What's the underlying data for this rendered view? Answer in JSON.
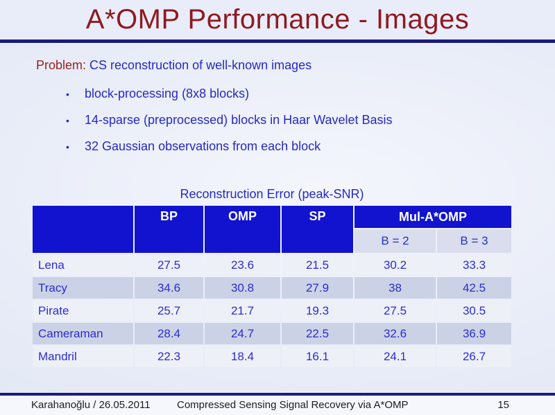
{
  "slide": {
    "title": "A*OMP Performance - Images",
    "problem": {
      "label": "Problem:",
      "text": "CS reconstruction of well-known images"
    },
    "bullet_char": "•",
    "bullets": [
      "block-processing (8x8 blocks)",
      "14-sparse (preprocessed) blocks in Haar Wavelet Basis",
      "32 Gaussian observations from each block"
    ]
  },
  "table": {
    "title": "Reconstruction Error (peak-SNR)",
    "column_headers": [
      "BP",
      "OMP",
      "SP"
    ],
    "group_header": "Mul-A*OMP",
    "sub_headers": [
      "B = 2",
      "B = 3"
    ],
    "rows": [
      {
        "name": "Lena",
        "values": [
          "27.5",
          "23.6",
          "21.5",
          "30.2",
          "33.3"
        ]
      },
      {
        "name": "Tracy",
        "values": [
          "34.6",
          "30.8",
          "27.9",
          "38",
          "42.5"
        ]
      },
      {
        "name": "Pirate",
        "values": [
          "25.7",
          "21.7",
          "19.3",
          "27.5",
          "30.5"
        ]
      },
      {
        "name": "Cameraman",
        "values": [
          "28.4",
          "24.7",
          "22.5",
          "32.6",
          "36.9"
        ]
      },
      {
        "name": "Mandril",
        "values": [
          "22.3",
          "18.4",
          "16.1",
          "24.1",
          "26.7"
        ]
      }
    ]
  },
  "footer": {
    "author_date": "Karahanoğlu / 26.05.2011",
    "presentation_title": "Compressed Sensing Signal Recovery via A*OMP",
    "page_number": "15"
  },
  "colors": {
    "title_red": "#8e1a20",
    "body_blue": "#2429c8",
    "table_text_blue": "#2b2bd2",
    "header_bg_blue": "#1113cf",
    "header_text": "#ffffff",
    "navy_rule": "#1b1b7e",
    "row_light": "#eef0f8",
    "row_dark": "#cbd2e6",
    "subheader_bg": "#d9dded",
    "footer_bg": "#f5f7fc",
    "slide_bg": "#e9edf9"
  }
}
